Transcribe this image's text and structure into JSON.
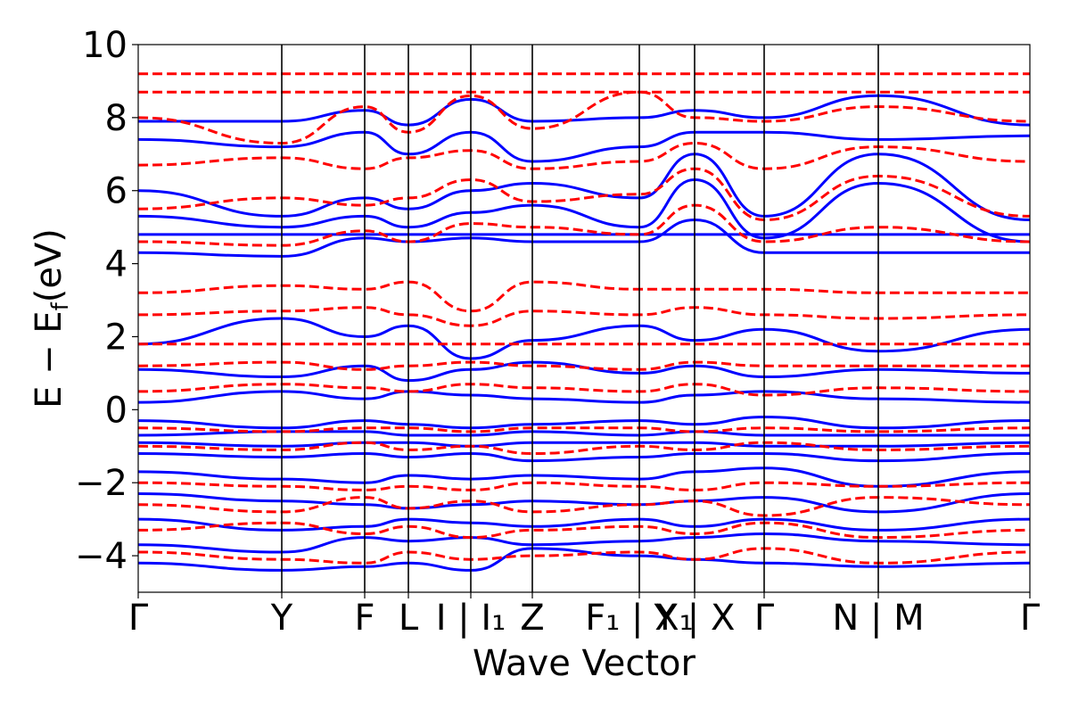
{
  "chart_data": {
    "type": "line",
    "title": "",
    "xlabel": "Wave Vector",
    "ylabel": "E − E_f (eV)",
    "ylabel_main": "E − E",
    "ylabel_sub": "f",
    "ylabel_unit": "(eV)",
    "ylim": [
      -5,
      10
    ],
    "xlim": [
      0,
      1
    ],
    "grid": false,
    "legend": "none",
    "colors": {
      "solid": "#0000ff",
      "dashed": "#ff0000",
      "axis": "#000000"
    },
    "yticks": [
      -4,
      -2,
      0,
      2,
      4,
      6,
      8,
      10
    ],
    "ytick_labels": [
      "−4",
      "−2",
      "0",
      "2",
      "4",
      "6",
      "8",
      "10"
    ],
    "kpoints": [
      {
        "x": 0.0,
        "label": "Γ"
      },
      {
        "x": 0.161,
        "label": "Y"
      },
      {
        "x": 0.254,
        "label": "F"
      },
      {
        "x": 0.303,
        "label": "L"
      },
      {
        "x": 0.373,
        "label": "I | I₁"
      },
      {
        "x": 0.442,
        "label": "Z"
      },
      {
        "x": 0.562,
        "label": "F₁ | X₁"
      },
      {
        "x": 0.624,
        "label": "Y | X"
      },
      {
        "x": 0.702,
        "label": "Γ"
      },
      {
        "x": 0.83,
        "label": "N | M"
      },
      {
        "x": 1.0,
        "label": "Γ"
      }
    ],
    "series": [
      {
        "style": "solid",
        "bands": [
          {
            "x": [
              0,
              0.161,
              0.254,
              0.303,
              0.373,
              0.442,
              0.562,
              0.624,
              0.702,
              0.83,
              1.0
            ],
            "y": [
              -4.2,
              -4.4,
              -4.3,
              -4.2,
              -4.4,
              -3.8,
              -4.0,
              -4.1,
              -4.2,
              -4.3,
              -4.2
            ]
          },
          {
            "x": [
              0,
              0.161,
              0.254,
              0.303,
              0.373,
              0.442,
              0.562,
              0.624,
              0.702,
              0.83,
              1.0
            ],
            "y": [
              -3.7,
              -3.9,
              -3.5,
              -3.6,
              -3.5,
              -3.7,
              -3.6,
              -3.5,
              -3.4,
              -3.6,
              -3.7
            ]
          },
          {
            "x": [
              0,
              0.161,
              0.254,
              0.303,
              0.373,
              0.442,
              0.562,
              0.624,
              0.702,
              0.83,
              1.0
            ],
            "y": [
              -3.0,
              -3.3,
              -3.2,
              -3.0,
              -3.1,
              -3.2,
              -3.0,
              -3.2,
              -3.0,
              -3.3,
              -3.0
            ]
          },
          {
            "x": [
              0,
              0.161,
              0.254,
              0.303,
              0.373,
              0.442,
              0.562,
              0.624,
              0.702,
              0.83,
              1.0
            ],
            "y": [
              -2.3,
              -2.5,
              -2.6,
              -2.7,
              -2.6,
              -2.5,
              -2.6,
              -2.5,
              -2.4,
              -2.8,
              -2.3
            ]
          },
          {
            "x": [
              0,
              0.161,
              0.254,
              0.303,
              0.373,
              0.442,
              0.562,
              0.624,
              0.702,
              0.83,
              1.0
            ],
            "y": [
              -1.7,
              -1.9,
              -2.0,
              -1.8,
              -1.9,
              -1.8,
              -1.9,
              -1.7,
              -1.6,
              -2.1,
              -1.7
            ]
          },
          {
            "x": [
              0,
              0.161,
              0.254,
              0.303,
              0.373,
              0.442,
              0.562,
              0.624,
              0.702,
              0.83,
              1.0
            ],
            "y": [
              -1.2,
              -1.3,
              -1.2,
              -1.3,
              -1.2,
              -1.4,
              -1.3,
              -1.2,
              -1.2,
              -1.4,
              -1.2
            ]
          },
          {
            "x": [
              0,
              0.161,
              0.254,
              0.303,
              0.373,
              0.442,
              0.562,
              0.624,
              0.702,
              0.83,
              1.0
            ],
            "y": [
              -0.9,
              -1.0,
              -0.9,
              -0.9,
              -1.0,
              -0.9,
              -0.9,
              -0.9,
              -1.0,
              -1.0,
              -0.9
            ]
          },
          {
            "x": [
              0,
              0.161,
              0.254,
              0.303,
              0.373,
              0.442,
              0.562,
              0.624,
              0.702,
              0.83,
              1.0
            ],
            "y": [
              -0.7,
              -0.6,
              -0.6,
              -0.7,
              -0.7,
              -0.6,
              -0.7,
              -0.6,
              -0.7,
              -0.7,
              -0.7
            ]
          },
          {
            "x": [
              0,
              0.161,
              0.254,
              0.303,
              0.373,
              0.442,
              0.562,
              0.624,
              0.702,
              0.83,
              1.0
            ],
            "y": [
              -0.3,
              -0.5,
              -0.3,
              -0.4,
              -0.5,
              -0.4,
              -0.3,
              -0.4,
              -0.2,
              -0.5,
              -0.3
            ]
          },
          {
            "x": [
              0,
              0.161,
              0.254,
              0.303,
              0.373,
              0.442,
              0.562,
              0.624,
              0.702,
              0.83,
              1.0
            ],
            "y": [
              0.2,
              0.5,
              0.3,
              0.5,
              0.4,
              0.3,
              0.2,
              0.4,
              0.5,
              0.3,
              0.2
            ]
          },
          {
            "x": [
              0,
              0.161,
              0.254,
              0.303,
              0.373,
              0.442,
              0.562,
              0.624,
              0.702,
              0.83,
              1.0
            ],
            "y": [
              1.1,
              0.9,
              1.2,
              0.8,
              1.1,
              1.3,
              1.0,
              1.2,
              0.9,
              1.1,
              1.0
            ]
          },
          {
            "x": [
              0,
              0.161,
              0.254,
              0.303,
              0.373,
              0.442,
              0.562,
              0.624,
              0.702,
              0.83,
              1.0
            ],
            "y": [
              1.8,
              2.5,
              2.0,
              2.3,
              1.4,
              1.9,
              2.3,
              1.9,
              2.2,
              1.6,
              2.2
            ]
          },
          {
            "x": [
              0,
              0.161,
              0.254,
              0.303,
              0.373,
              0.442,
              0.562,
              0.624,
              0.702,
              0.83,
              1.0
            ],
            "y": [
              4.3,
              4.2,
              4.7,
              4.6,
              4.7,
              4.6,
              4.6,
              5.2,
              4.3,
              4.3,
              4.3
            ]
          },
          {
            "x": [
              0,
              0.161,
              0.254,
              0.303,
              0.373,
              0.442,
              0.562,
              0.624,
              0.702,
              0.83,
              1.0
            ],
            "y": [
              4.8,
              4.8,
              4.8,
              4.8,
              4.8,
              4.8,
              4.8,
              4.8,
              4.8,
              4.8,
              4.8
            ]
          },
          {
            "x": [
              0,
              0.161,
              0.254,
              0.303,
              0.373,
              0.442,
              0.562,
              0.624,
              0.702,
              0.83,
              1.0
            ],
            "y": [
              5.3,
              5.0,
              5.3,
              5.0,
              5.4,
              5.6,
              5.0,
              6.3,
              4.7,
              6.2,
              4.6
            ]
          },
          {
            "x": [
              0,
              0.161,
              0.254,
              0.303,
              0.373,
              0.442,
              0.562,
              0.624,
              0.702,
              0.83,
              1.0
            ],
            "y": [
              6.0,
              5.3,
              5.8,
              5.5,
              6.0,
              6.2,
              5.8,
              7.0,
              5.3,
              7.0,
              5.2
            ]
          },
          {
            "x": [
              0,
              0.161,
              0.254,
              0.303,
              0.373,
              0.442,
              0.562,
              0.624,
              0.702,
              0.83,
              1.0
            ],
            "y": [
              7.4,
              7.2,
              7.6,
              7.0,
              7.6,
              6.8,
              7.2,
              7.6,
              7.6,
              7.4,
              7.5
            ]
          },
          {
            "x": [
              0,
              0.161,
              0.254,
              0.303,
              0.373,
              0.442,
              0.562,
              0.624,
              0.702,
              0.83,
              1.0
            ],
            "y": [
              7.9,
              7.9,
              8.2,
              7.8,
              8.5,
              7.9,
              8.0,
              8.2,
              8.0,
              8.6,
              7.8
            ]
          }
        ]
      },
      {
        "style": "dashed",
        "bands": [
          {
            "x": [
              0,
              0.161,
              0.254,
              0.303,
              0.373,
              0.442,
              0.562,
              0.624,
              0.702,
              0.83,
              1.0
            ],
            "y": [
              -3.9,
              -4.1,
              -4.2,
              -3.9,
              -4.1,
              -4.0,
              -3.9,
              -4.1,
              -3.8,
              -4.2,
              -3.9
            ]
          },
          {
            "x": [
              0,
              0.161,
              0.254,
              0.303,
              0.373,
              0.442,
              0.562,
              0.624,
              0.702,
              0.83,
              1.0
            ],
            "y": [
              -3.3,
              -3.1,
              -3.4,
              -3.2,
              -3.5,
              -3.3,
              -3.2,
              -3.4,
              -3.1,
              -3.5,
              -3.3
            ]
          },
          {
            "x": [
              0,
              0.161,
              0.254,
              0.303,
              0.373,
              0.442,
              0.562,
              0.624,
              0.702,
              0.83,
              1.0
            ],
            "y": [
              -2.6,
              -2.8,
              -2.4,
              -2.7,
              -2.5,
              -2.8,
              -2.6,
              -2.5,
              -2.9,
              -2.4,
              -2.6
            ]
          },
          {
            "x": [
              0,
              0.161,
              0.254,
              0.303,
              0.373,
              0.442,
              0.562,
              0.624,
              0.702,
              0.83,
              1.0
            ],
            "y": [
              -2.0,
              -2.1,
              -2.2,
              -2.1,
              -2.2,
              -2.0,
              -2.1,
              -2.2,
              -2.0,
              -2.1,
              -2.0
            ]
          },
          {
            "x": [
              0,
              0.161,
              0.254,
              0.303,
              0.373,
              0.442,
              0.562,
              0.624,
              0.702,
              0.83,
              1.0
            ],
            "y": [
              -1.0,
              -1.1,
              -0.9,
              -1.1,
              -1.0,
              -1.2,
              -1.0,
              -1.1,
              -0.9,
              -1.1,
              -1.0
            ]
          },
          {
            "x": [
              0,
              0.161,
              0.254,
              0.303,
              0.373,
              0.442,
              0.562,
              0.624,
              0.702,
              0.83,
              1.0
            ],
            "y": [
              -0.5,
              -0.6,
              -0.5,
              -0.5,
              -0.6,
              -0.5,
              -0.5,
              -0.6,
              -0.5,
              -0.6,
              -0.5
            ]
          },
          {
            "x": [
              0,
              0.161,
              0.254,
              0.303,
              0.373,
              0.442,
              0.562,
              0.624,
              0.702,
              0.83,
              1.0
            ],
            "y": [
              0.5,
              0.7,
              0.6,
              0.5,
              0.7,
              0.6,
              0.5,
              0.7,
              0.4,
              0.6,
              0.5
            ]
          },
          {
            "x": [
              0,
              0.161,
              0.254,
              0.303,
              0.373,
              0.442,
              0.562,
              0.624,
              0.702,
              0.83,
              1.0
            ],
            "y": [
              1.2,
              1.3,
              1.1,
              1.2,
              1.3,
              1.2,
              1.1,
              1.3,
              1.2,
              1.2,
              1.2
            ]
          },
          {
            "x": [
              0,
              0.161,
              0.254,
              0.303,
              0.373,
              0.442,
              0.562,
              0.624,
              0.702,
              0.83,
              1.0
            ],
            "y": [
              1.8,
              1.8,
              1.8,
              1.8,
              1.8,
              1.8,
              1.8,
              1.8,
              1.8,
              1.8,
              1.8
            ]
          },
          {
            "x": [
              0,
              0.161,
              0.254,
              0.303,
              0.373,
              0.442,
              0.562,
              0.624,
              0.702,
              0.83,
              1.0
            ],
            "y": [
              2.6,
              2.7,
              2.8,
              2.6,
              2.3,
              2.7,
              2.6,
              2.8,
              2.6,
              2.5,
              2.6
            ]
          },
          {
            "x": [
              0,
              0.161,
              0.254,
              0.303,
              0.373,
              0.442,
              0.562,
              0.624,
              0.702,
              0.83,
              1.0
            ],
            "y": [
              3.2,
              3.4,
              3.3,
              3.5,
              2.7,
              3.5,
              3.3,
              3.3,
              3.3,
              3.2,
              3.2
            ]
          },
          {
            "x": [
              0,
              0.161,
              0.254,
              0.303,
              0.373,
              0.442,
              0.562,
              0.624,
              0.702,
              0.83,
              1.0
            ],
            "y": [
              4.6,
              4.5,
              4.9,
              4.6,
              5.1,
              5.0,
              4.8,
              5.6,
              4.6,
              5.0,
              4.6
            ]
          },
          {
            "x": [
              0,
              0.161,
              0.254,
              0.303,
              0.373,
              0.442,
              0.562,
              0.624,
              0.702,
              0.83,
              1.0
            ],
            "y": [
              5.5,
              5.8,
              5.6,
              5.8,
              6.3,
              5.7,
              5.9,
              6.6,
              5.2,
              6.4,
              5.3
            ]
          },
          {
            "x": [
              0,
              0.161,
              0.254,
              0.303,
              0.373,
              0.442,
              0.562,
              0.624,
              0.702,
              0.83,
              1.0
            ],
            "y": [
              6.7,
              6.9,
              6.6,
              6.9,
              7.1,
              6.6,
              6.8,
              7.3,
              6.6,
              7.2,
              6.8
            ]
          },
          {
            "x": [
              0,
              0.161,
              0.254,
              0.303,
              0.373,
              0.442,
              0.562,
              0.624,
              0.702,
              0.83,
              1.0
            ],
            "y": [
              8.0,
              7.3,
              8.3,
              7.6,
              8.6,
              7.7,
              8.7,
              8.0,
              7.9,
              8.3,
              7.9
            ]
          },
          {
            "x": [
              0,
              0.161,
              0.254,
              0.303,
              0.373,
              0.442,
              0.562,
              0.624,
              0.702,
              0.83,
              1.0
            ],
            "y": [
              8.7,
              8.7,
              8.7,
              8.7,
              8.7,
              8.7,
              8.7,
              8.7,
              8.7,
              8.7,
              8.7
            ]
          },
          {
            "x": [
              0,
              0.161,
              0.254,
              0.303,
              0.373,
              0.442,
              0.562,
              0.624,
              0.702,
              0.83,
              1.0
            ],
            "y": [
              9.2,
              9.2,
              9.2,
              9.2,
              9.2,
              9.2,
              9.2,
              9.2,
              9.2,
              9.2,
              9.2
            ]
          }
        ]
      }
    ]
  }
}
